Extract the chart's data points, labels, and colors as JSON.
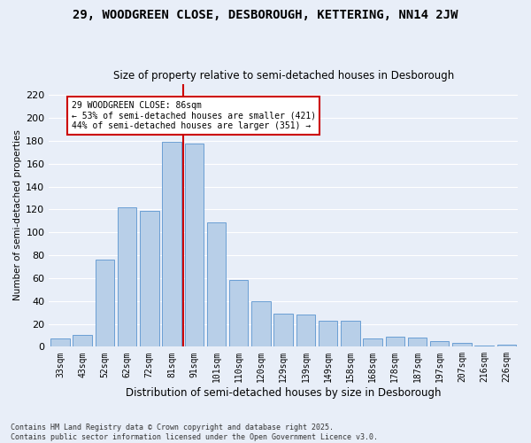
{
  "title": "29, WOODGREEN CLOSE, DESBOROUGH, KETTERING, NN14 2JW",
  "subtitle": "Size of property relative to semi-detached houses in Desborough",
  "xlabel": "Distribution of semi-detached houses by size in Desborough",
  "ylabel": "Number of semi-detached properties",
  "categories": [
    "33sqm",
    "43sqm",
    "52sqm",
    "62sqm",
    "72sqm",
    "81sqm",
    "91sqm",
    "101sqm",
    "110sqm",
    "120sqm",
    "129sqm",
    "139sqm",
    "149sqm",
    "158sqm",
    "168sqm",
    "178sqm",
    "187sqm",
    "197sqm",
    "207sqm",
    "216sqm",
    "226sqm"
  ],
  "values": [
    7,
    10,
    76,
    122,
    119,
    179,
    178,
    109,
    58,
    40,
    29,
    28,
    23,
    23,
    7,
    9,
    8,
    5,
    3,
    1,
    2
  ],
  "bar_color": "#b8cfe8",
  "bar_edge_color": "#6a9fd4",
  "property_label": "29 WOODGREEN CLOSE: 86sqm",
  "smaller_pct": "53%",
  "smaller_count": 421,
  "larger_pct": "44%",
  "larger_count": 351,
  "vline_color": "#cc0000",
  "vline_x_idx": 5.5,
  "annotation_box_color": "#cc0000",
  "background_color": "#e8eef8",
  "grid_color": "#ffffff",
  "footer": "Contains HM Land Registry data © Crown copyright and database right 2025.\nContains public sector information licensed under the Open Government Licence v3.0.",
  "ylim": [
    0,
    230
  ],
  "yticks": [
    0,
    20,
    40,
    60,
    80,
    100,
    120,
    140,
    160,
    180,
    200,
    220
  ],
  "title_fontsize": 10,
  "subtitle_fontsize": 8.5
}
